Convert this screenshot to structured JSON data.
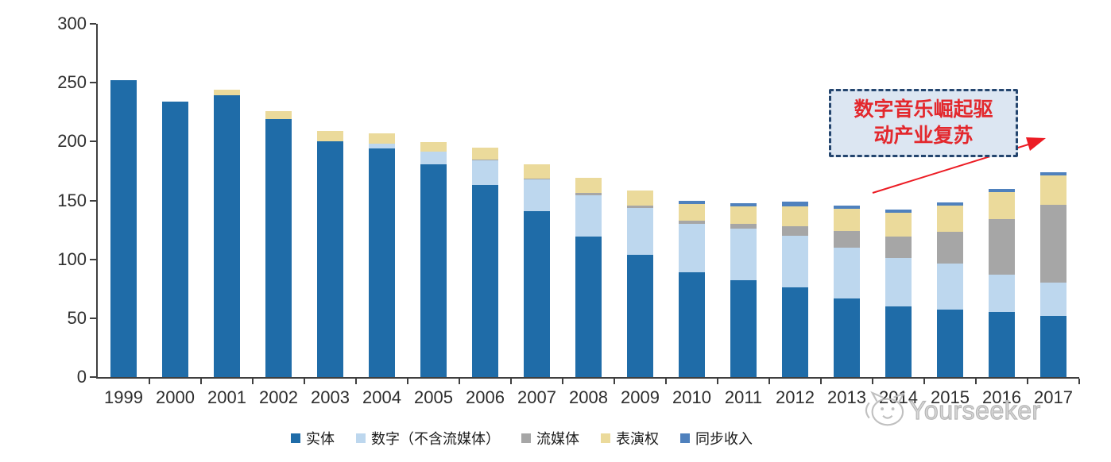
{
  "chart_data": {
    "type": "bar",
    "stacked": true,
    "title": "",
    "xlabel": "",
    "ylabel": "",
    "ylim": [
      0,
      300
    ],
    "yticks": [
      0,
      50,
      100,
      150,
      200,
      250,
      300
    ],
    "grid": false,
    "legend_position": "bottom",
    "categories": [
      "1999",
      "2000",
      "2001",
      "2002",
      "2003",
      "2004",
      "2005",
      "2006",
      "2007",
      "2008",
      "2009",
      "2010",
      "2011",
      "2012",
      "2013",
      "2014",
      "2015",
      "2016",
      "2017"
    ],
    "series": [
      {
        "key": "physical",
        "name": "实体",
        "color": "#1F6CA8",
        "values": [
          252,
          234,
          239,
          219,
          200,
          194,
          181,
          163,
          141,
          119,
          104,
          89,
          82,
          76,
          67,
          60,
          57,
          55,
          52
        ]
      },
      {
        "key": "digital",
        "name": "数字（不含流媒体）",
        "color": "#BDD7EE",
        "values": [
          0,
          0,
          0,
          0,
          0,
          4,
          11,
          21,
          27,
          35,
          40,
          41,
          44,
          44,
          43,
          41,
          39,
          32,
          28
        ]
      },
      {
        "key": "streaming",
        "name": "流媒体",
        "color": "#A6A6A6",
        "values": [
          0,
          0,
          0,
          0,
          0,
          0,
          0,
          1,
          1,
          2,
          2,
          3,
          4,
          8,
          14,
          18,
          27,
          47,
          66
        ]
      },
      {
        "key": "performance",
        "name": "表演权",
        "color": "#EBDA9B",
        "values": [
          0,
          0,
          5,
          7,
          9,
          9,
          8,
          10,
          12,
          13,
          13,
          14,
          15,
          17,
          19,
          20,
          22,
          23,
          25
        ]
      },
      {
        "key": "sync",
        "name": "同步收入",
        "color": "#4F81BD",
        "values": [
          0,
          0,
          0,
          0,
          0,
          0,
          0,
          0,
          0,
          0,
          0,
          3,
          3,
          4,
          3,
          3,
          3,
          3,
          3
        ]
      }
    ]
  },
  "annotation": {
    "line1": "数字音乐崛起驱",
    "line2": "动产业复苏",
    "text_color": "#E3282D",
    "box_fill": "#DCE6F2",
    "border_color": "#24456E",
    "arrow_color": "#EC1C24"
  },
  "watermark": {
    "text": "Yourseeker",
    "logo": "cat-logo-icon",
    "color": "#BDBDBD"
  }
}
